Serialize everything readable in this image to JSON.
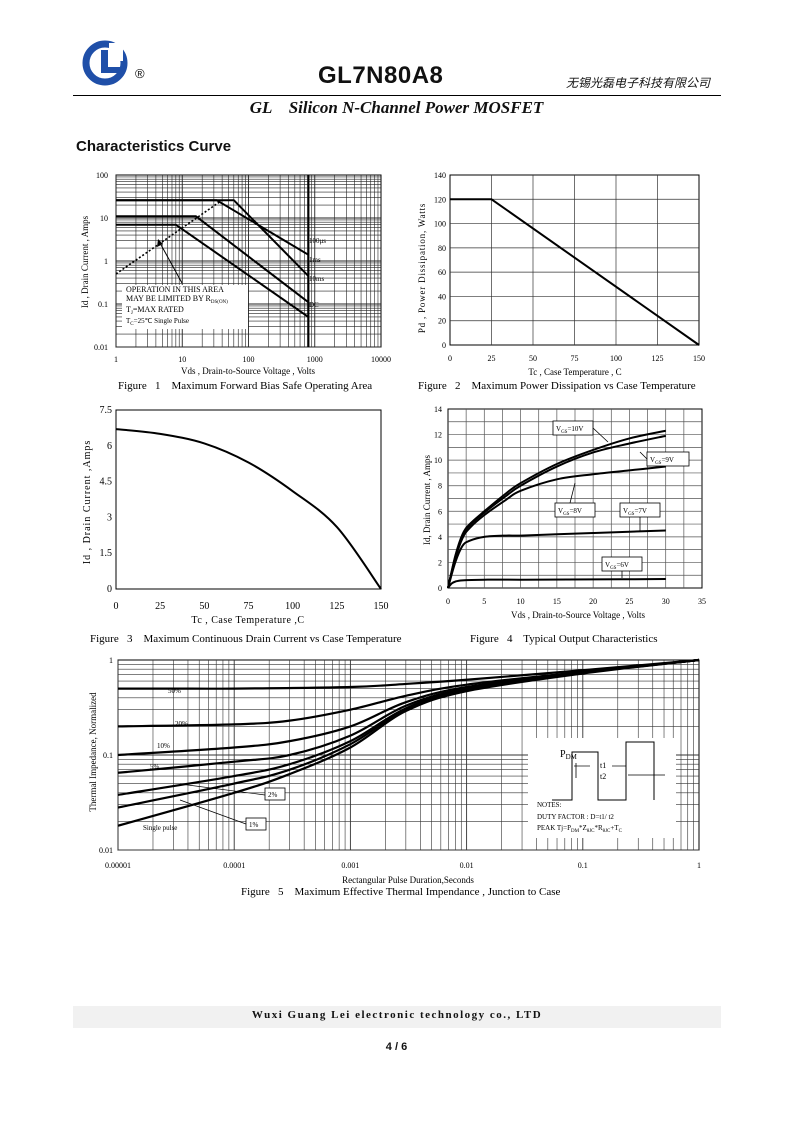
{
  "header": {
    "registered_mark": "®",
    "part_number": "GL7N80A8",
    "company_cn": "无锡光磊电子科技有限公司",
    "subtitle": "GL    Silicon N-Channel Power MOSFET",
    "brand_color": "#1f4fa8"
  },
  "section_title": "Characteristics Curve",
  "figures": [
    {
      "caption": "Figure   1    Maximum Forward Bias Safe Operating Area",
      "xlabel": "Vds , Drain-to-Source Voltage , Volts",
      "ylabel": "Id , Drain Current , Amps",
      "xticks": [
        "1",
        "10",
        "100",
        "1000",
        "10000"
      ],
      "yticks": [
        "100",
        "10",
        "1",
        "0.1",
        "0.01"
      ],
      "annotation": [
        "OPERATION IN THIS AREA",
        "MAY BE LIMITED BY R",
        "T",
        "=MAX RATED",
        "T",
        "=25℃  Single Pulse"
      ],
      "curve_labels": [
        "100μs",
        "1ms",
        "10ms",
        "DC"
      ]
    },
    {
      "caption": "Figure   2    Maximum Power Dissipation vs Case Temperature",
      "xlabel": "Tc , Case Temperature , C",
      "ylabel": "Pd , Power Dissipation, Watts",
      "xticks": [
        "0",
        "25",
        "50",
        "75",
        "100",
        "125",
        "150"
      ],
      "yticks": [
        "140",
        "120",
        "100",
        "80",
        "60",
        "40",
        "20",
        "0"
      ]
    },
    {
      "caption": "Figure   3    Maximum Continuous Drain Current vs Case Temperature",
      "xlabel": "Tc , Case Temperature ,C",
      "ylabel": "Id , Drain Current ,Amps",
      "xticks": [
        "0",
        "25",
        "50",
        "75",
        "100",
        "125",
        "150"
      ],
      "yticks": [
        "7.5",
        "6",
        "4.5",
        "3",
        "1.5",
        "0"
      ]
    },
    {
      "caption": "Figure   4    Typical Output Characteristics",
      "xlabel": "Vds , Drain-to-Source Voltage , Volts",
      "ylabel": "Id, Drain Current , Amps",
      "xticks": [
        "0",
        "5",
        "10",
        "15",
        "20",
        "25",
        "30",
        "35"
      ],
      "yticks": [
        "14",
        "12",
        "10",
        "8",
        "6",
        "4",
        "2",
        "0"
      ],
      "curve_labels": [
        "V",
        "=10V",
        "V",
        "=9V",
        "V",
        "=8V",
        "V",
        "=7V",
        "V",
        "=6V"
      ]
    },
    {
      "caption": "Figure   5    Maximum Effective Thermal Impendance , Junction to Case",
      "xlabel": "Rectangular Pulse Duration,Seconds",
      "ylabel": "Thermal Impedance, Normalized",
      "xticks": [
        "0.00001",
        "0.0001",
        "0.001",
        "0.01",
        "0.1",
        "1"
      ],
      "yticks": [
        "1",
        "0.1",
        "0.01"
      ],
      "curve_labels": [
        "50%",
        "20%",
        "10%",
        "5%",
        "2%",
        "1%",
        "Single pulse"
      ],
      "inset": [
        "P",
        "DM",
        "t1",
        "t2",
        "NOTES:",
        "DUTY FACTOR :  D=t1/ t2",
        "PEAK Tj=P",
        "DM",
        "*Z",
        "θJC",
        "*R",
        "θJC",
        "+T",
        "C"
      ]
    }
  ],
  "chart_data": [
    {
      "type": "line",
      "title": "Maximum Forward Bias Safe Operating Area",
      "xscale": "log",
      "yscale": "log",
      "xlim": [
        1,
        10000
      ],
      "ylim": [
        0.01,
        100
      ],
      "series": [
        {
          "name": "100μs",
          "x": [
            1,
            33,
            800
          ],
          "y": [
            26,
            26,
            1.4
          ]
        },
        {
          "name": "1ms",
          "x": [
            1,
            60,
            800
          ],
          "y": [
            26,
            26,
            0.45
          ]
        },
        {
          "name": "10ms",
          "x": [
            1,
            16,
            800
          ],
          "y": [
            11,
            11,
            0.11
          ]
        },
        {
          "name": "DC",
          "x": [
            1,
            8,
            800
          ],
          "y": [
            7,
            7,
            0.05
          ]
        }
      ],
      "rds_limit": {
        "x": [
          1,
          40
        ],
        "y": [
          0.5,
          26
        ]
      }
    },
    {
      "type": "line",
      "title": "Maximum Power Dissipation vs Case Temperature",
      "xlim": [
        0,
        150
      ],
      "ylim": [
        0,
        140
      ],
      "series": [
        {
          "x": [
            0,
            25,
            150
          ],
          "y": [
            120,
            120,
            0
          ]
        }
      ]
    },
    {
      "type": "line",
      "title": "Maximum Continuous Drain Current vs Case Temperature",
      "xlim": [
        0,
        150
      ],
      "ylim": [
        0,
        7.5
      ],
      "series": [
        {
          "x": [
            0,
            25,
            50,
            75,
            100,
            125,
            150
          ],
          "y": [
            6.7,
            6.5,
            6.1,
            5.3,
            4.1,
            2.6,
            0
          ]
        }
      ]
    },
    {
      "type": "line",
      "title": "Typical Output Characteristics",
      "xlim": [
        0,
        35
      ],
      "ylim": [
        0,
        14
      ],
      "series": [
        {
          "name": "VGS=10V",
          "x": [
            0,
            1,
            2,
            3,
            5,
            8,
            10,
            15,
            20,
            25,
            30
          ],
          "y": [
            0,
            2.5,
            4.2,
            5,
            6,
            7.4,
            8.2,
            9.7,
            10.8,
            11.7,
            12.3
          ]
        },
        {
          "name": "VGS=9V",
          "x": [
            0,
            1,
            2,
            3,
            5,
            8,
            10,
            15,
            20,
            25,
            30
          ],
          "y": [
            0,
            2.4,
            4.1,
            4.9,
            5.9,
            7.2,
            8,
            9.5,
            10.6,
            11.3,
            11.9
          ]
        },
        {
          "name": "VGS=8V",
          "x": [
            0,
            1,
            2,
            3,
            5,
            8,
            10,
            15,
            20,
            25,
            30
          ],
          "y": [
            0,
            2.3,
            3.9,
            4.7,
            5.7,
            6.9,
            7.6,
            8.5,
            8.9,
            9.2,
            9.5
          ]
        },
        {
          "name": "VGS=7V",
          "x": [
            0,
            1,
            2,
            3,
            5,
            8,
            10,
            15,
            20,
            25,
            30
          ],
          "y": [
            0,
            2,
            3.3,
            3.7,
            4,
            4.1,
            4.1,
            4.2,
            4.3,
            4.4,
            4.5
          ]
        },
        {
          "name": "VGS=6V",
          "x": [
            0,
            0.5,
            1,
            2,
            5,
            10,
            20,
            30
          ],
          "y": [
            0,
            0.35,
            0.5,
            0.6,
            0.65,
            0.65,
            0.67,
            0.7
          ]
        }
      ]
    },
    {
      "type": "line",
      "title": "Maximum Effective Thermal Impendance , Junction to Case",
      "xscale": "log",
      "yscale": "log",
      "xlim": [
        1e-05,
        1
      ],
      "ylim": [
        0.01,
        1
      ],
      "series": [
        {
          "name": "50%",
          "x": [
            1e-05,
            3e-05,
            0.0001,
            0.001,
            0.003,
            0.01,
            0.1,
            1
          ],
          "y": [
            0.5,
            0.5,
            0.5,
            0.52,
            0.56,
            0.62,
            0.78,
            1
          ]
        },
        {
          "name": "20%",
          "x": [
            1e-05,
            0.0001,
            0.0003,
            0.001,
            0.003,
            0.01,
            0.1,
            1
          ],
          "y": [
            0.2,
            0.21,
            0.23,
            0.3,
            0.42,
            0.55,
            0.75,
            1
          ]
        },
        {
          "name": "10%",
          "x": [
            1e-05,
            0.0001,
            0.0003,
            0.001,
            0.003,
            0.01,
            0.1,
            1
          ],
          "y": [
            0.1,
            0.12,
            0.14,
            0.2,
            0.36,
            0.52,
            0.74,
            1
          ]
        },
        {
          "name": "5%",
          "x": [
            1e-05,
            0.0001,
            0.0003,
            0.001,
            0.003,
            0.01,
            0.1,
            1
          ],
          "y": [
            0.065,
            0.085,
            0.1,
            0.16,
            0.33,
            0.5,
            0.74,
            1
          ]
        },
        {
          "name": "2%",
          "x": [
            1e-05,
            0.0001,
            0.0003,
            0.001,
            0.003,
            0.01,
            0.1,
            1
          ],
          "y": [
            0.038,
            0.06,
            0.08,
            0.14,
            0.31,
            0.49,
            0.73,
            1
          ]
        },
        {
          "name": "1%",
          "x": [
            1e-05,
            0.0001,
            0.0003,
            0.001,
            0.003,
            0.01,
            0.1,
            1
          ],
          "y": [
            0.028,
            0.05,
            0.07,
            0.13,
            0.3,
            0.48,
            0.73,
            1
          ]
        },
        {
          "name": "Single pulse",
          "x": [
            1e-05,
            0.0001,
            0.0003,
            0.001,
            0.003,
            0.01,
            0.1,
            1
          ],
          "y": [
            0.018,
            0.04,
            0.063,
            0.12,
            0.29,
            0.47,
            0.72,
            1
          ]
        }
      ]
    }
  ],
  "footer": {
    "company": "Wuxi Guang Lei electronic technology co., LTD",
    "page": "4 / 6"
  }
}
